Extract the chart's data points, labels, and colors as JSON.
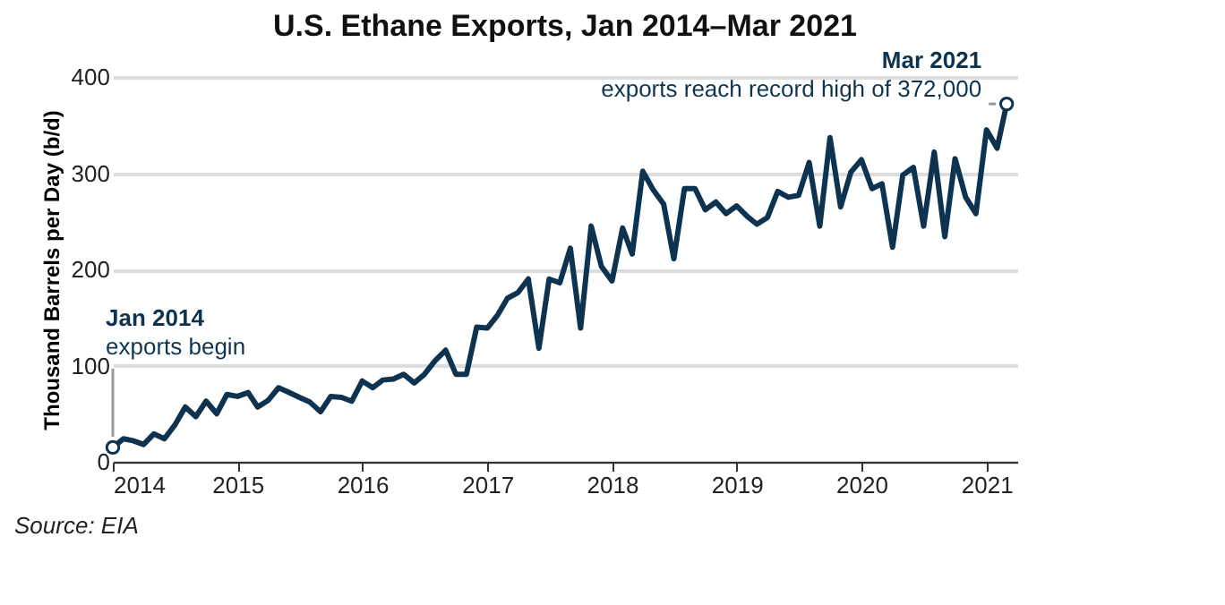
{
  "chart_data": {
    "type": "line",
    "title": "U.S. Ethane Exports, Jan 2014–Mar 2021",
    "ylabel": "Thousand Barrels per Day (b/d)",
    "x": [
      "2014-01",
      "2014-02",
      "2014-03",
      "2014-04",
      "2014-05",
      "2014-06",
      "2014-07",
      "2014-08",
      "2014-09",
      "2014-10",
      "2014-11",
      "2014-12",
      "2015-01",
      "2015-02",
      "2015-03",
      "2015-04",
      "2015-05",
      "2015-06",
      "2015-07",
      "2015-08",
      "2015-09",
      "2015-10",
      "2015-11",
      "2015-12",
      "2016-01",
      "2016-02",
      "2016-03",
      "2016-04",
      "2016-05",
      "2016-06",
      "2016-07",
      "2016-08",
      "2016-09",
      "2016-10",
      "2016-11",
      "2016-12",
      "2017-01",
      "2017-02",
      "2017-03",
      "2017-04",
      "2017-05",
      "2017-06",
      "2017-07",
      "2017-08",
      "2017-09",
      "2017-10",
      "2017-11",
      "2017-12",
      "2018-01",
      "2018-02",
      "2018-03",
      "2018-04",
      "2018-05",
      "2018-06",
      "2018-07",
      "2018-08",
      "2018-09",
      "2018-10",
      "2018-11",
      "2018-12",
      "2019-01",
      "2019-02",
      "2019-03",
      "2019-04",
      "2019-05",
      "2019-06",
      "2019-07",
      "2019-08",
      "2019-09",
      "2019-10",
      "2019-11",
      "2019-12",
      "2020-01",
      "2020-02",
      "2020-03",
      "2020-04",
      "2020-05",
      "2020-06",
      "2020-07",
      "2020-08",
      "2020-09",
      "2020-10",
      "2020-11",
      "2020-12",
      "2021-01",
      "2021-02",
      "2021-03"
    ],
    "series": [
      {
        "color": "#0d3350",
        "values": [
          15,
          24,
          22,
          18,
          29,
          24,
          38,
          57,
          47,
          63,
          50,
          70,
          68,
          72,
          57,
          64,
          77,
          72,
          67,
          62,
          52,
          68,
          67,
          63,
          84,
          77,
          85,
          86,
          91,
          82,
          91,
          105,
          116,
          91,
          91,
          140,
          139,
          153,
          170,
          176,
          190,
          118,
          190,
          186,
          222,
          139,
          245,
          203,
          188,
          243,
          216,
          302,
          283,
          268,
          211,
          284,
          284,
          262,
          270,
          258,
          266,
          255,
          247,
          254,
          281,
          275,
          277,
          311,
          245,
          337,
          265,
          301,
          314,
          284,
          289,
          223,
          298,
          306,
          245,
          322,
          234,
          315,
          275,
          258,
          345,
          326,
          372
        ]
      }
    ],
    "xlim": [
      "2014-01",
      "2021-04"
    ],
    "xticks": [
      "2014",
      "2015",
      "2016",
      "2017",
      "2018",
      "2019",
      "2020",
      "2021"
    ],
    "ylim": [
      0,
      400
    ],
    "yticks": [
      0,
      100,
      200,
      300,
      400
    ],
    "grid": "y",
    "marker": "none",
    "line_style": "solid",
    "annotations": [
      {
        "text": "Jan 2014\nexports begin",
        "x": "2014-01",
        "y": 15
      },
      {
        "text": "Mar 2021\nexports reach record high of 372,000",
        "x": "2021-03",
        "y": 372
      },
      "Source: EIA"
    ]
  }
}
